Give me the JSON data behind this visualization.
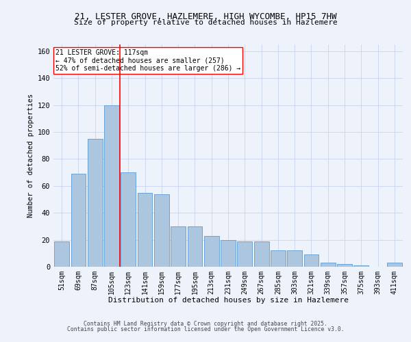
{
  "title_line1": "21, LESTER GROVE, HAZLEMERE, HIGH WYCOMBE, HP15 7HW",
  "title_line2": "Size of property relative to detached houses in Hazlemere",
  "xlabel": "Distribution of detached houses by size in Hazlemere",
  "ylabel": "Number of detached properties",
  "categories": [
    "51sqm",
    "69sqm",
    "87sqm",
    "105sqm",
    "123sqm",
    "141sqm",
    "159sqm",
    "177sqm",
    "195sqm",
    "213sqm",
    "231sqm",
    "249sqm",
    "267sqm",
    "285sqm",
    "303sqm",
    "321sqm",
    "339sqm",
    "357sqm",
    "375sqm",
    "393sqm",
    "411sqm"
  ],
  "values": [
    19,
    69,
    95,
    120,
    70,
    55,
    54,
    30,
    30,
    23,
    20,
    19,
    19,
    12,
    12,
    9,
    3,
    2,
    1,
    0,
    3
  ],
  "bar_color": "#adc6e0",
  "bar_edge_color": "#5b9bd5",
  "vline_x": 3.5,
  "vline_color": "red",
  "annotation_text": "21 LESTER GROVE: 117sqm\n← 47% of detached houses are smaller (257)\n52% of semi-detached houses are larger (286) →",
  "annotation_box_color": "white",
  "annotation_box_edge": "red",
  "ylim": [
    0,
    165
  ],
  "yticks": [
    0,
    20,
    40,
    60,
    80,
    100,
    120,
    140,
    160
  ],
  "footer_line1": "Contains HM Land Registry data © Crown copyright and database right 2025.",
  "footer_line2": "Contains public sector information licensed under the Open Government Licence v3.0.",
  "bg_color": "#eef2fb",
  "grid_color": "#c8d4ec"
}
